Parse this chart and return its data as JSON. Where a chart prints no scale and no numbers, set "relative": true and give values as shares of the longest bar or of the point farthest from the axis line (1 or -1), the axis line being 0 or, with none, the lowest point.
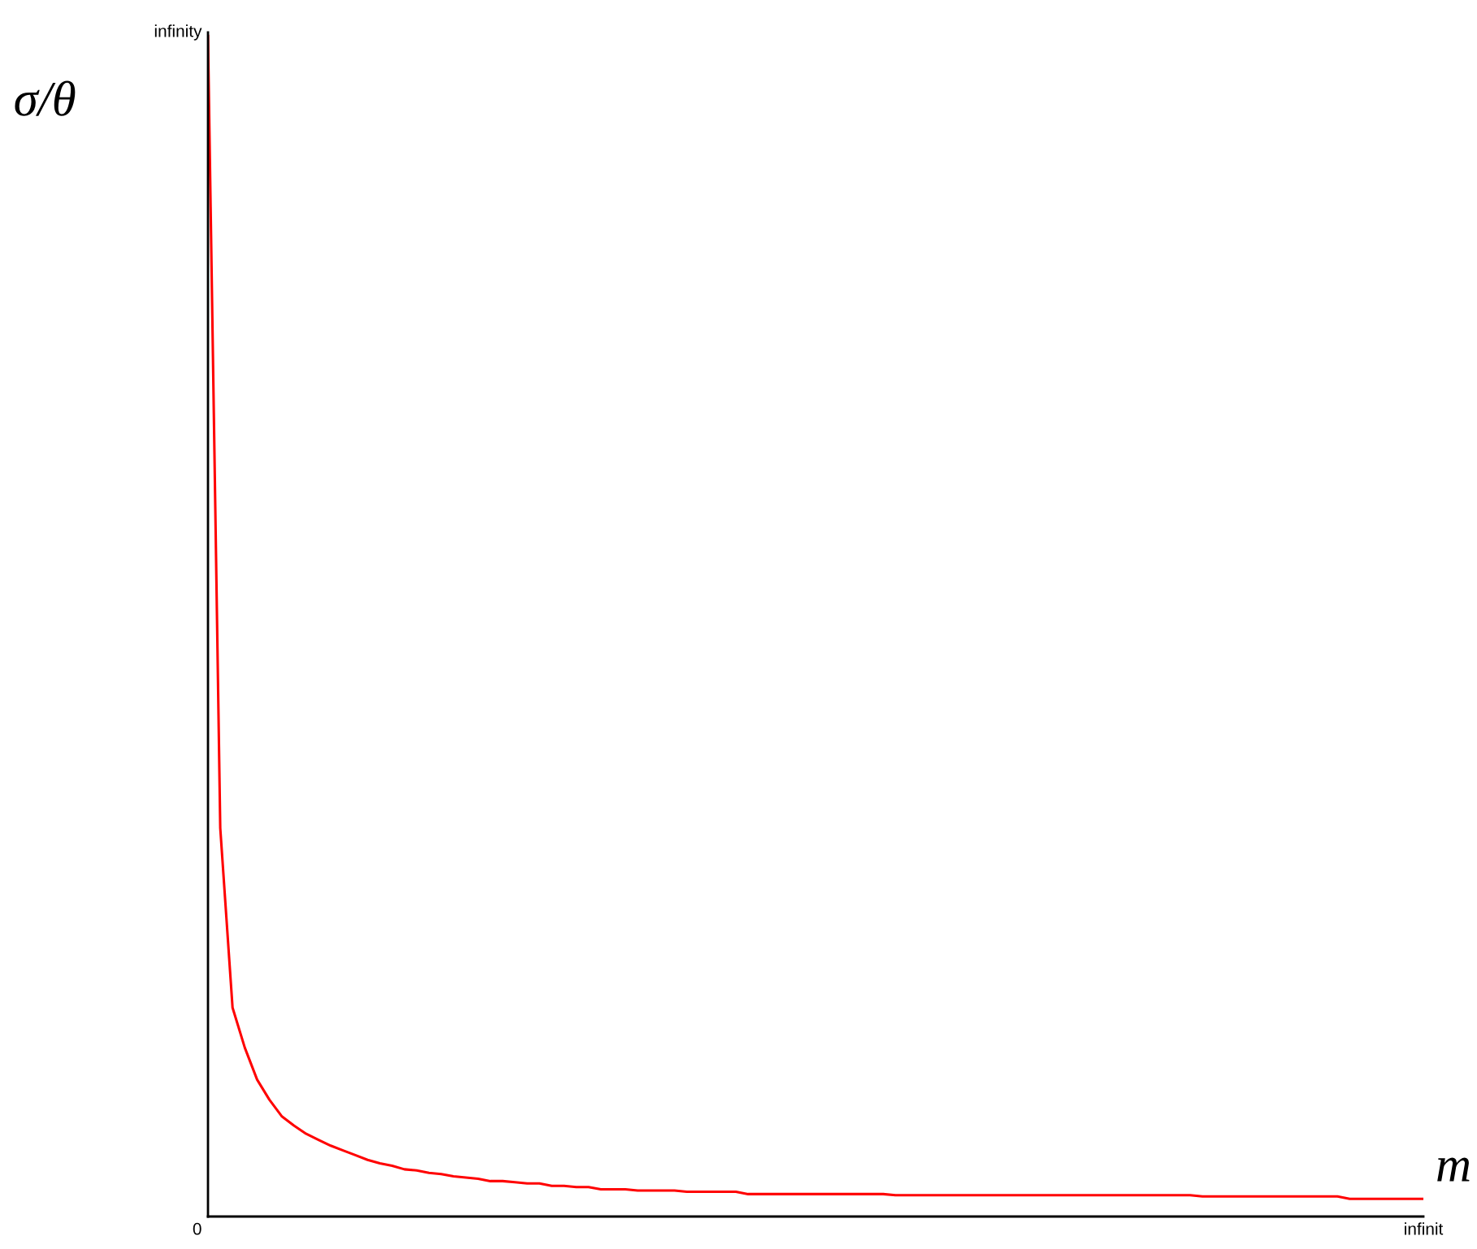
{
  "chart_data": {
    "type": "line",
    "xlabel": "m",
    "ylabel": "σ/θ",
    "relative": true,
    "annotations": [
      "infinity",
      "0",
      "infinit"
    ],
    "categories": [
      null,
      null,
      null,
      null,
      null,
      null,
      null,
      null,
      null,
      null,
      null,
      null,
      null,
      null,
      null,
      null,
      null,
      null,
      null,
      null,
      null,
      null,
      null,
      null,
      null,
      null,
      null,
      null,
      null,
      null,
      null,
      null,
      null,
      null,
      null,
      null,
      null,
      null,
      null,
      null,
      null,
      null,
      null,
      null,
      null,
      null,
      null,
      null,
      null,
      null,
      null,
      null,
      null,
      null,
      null,
      null,
      null,
      null,
      null,
      null,
      null,
      null,
      null,
      null,
      null,
      null,
      null,
      null,
      null,
      null,
      null,
      null,
      null,
      null,
      null,
      null,
      null,
      null,
      null,
      null,
      null,
      null,
      null,
      null,
      null,
      null,
      null,
      null,
      null,
      null,
      null,
      null,
      null,
      null,
      null,
      null,
      null,
      null,
      null,
      null
    ],
    "series": [
      {
        "color": "#ff0000",
        "values": [
          1,
          0.329,
          0.177,
          0.143,
          0.116,
          0.099,
          0.085,
          0.077,
          0.07,
          0.065,
          0.06,
          0.056,
          0.052,
          0.048,
          0.045,
          0.043,
          0.04,
          0.039,
          0.037,
          0.036,
          0.034,
          0.033,
          0.032,
          0.03,
          0.03,
          0.029,
          0.028,
          0.028,
          0.026,
          0.026,
          0.025,
          0.025,
          0.023,
          0.023,
          0.023,
          0.022,
          0.022,
          0.022,
          0.022,
          0.021,
          0.021,
          0.021,
          0.021,
          0.021,
          0.019,
          0.019,
          0.019,
          0.019,
          0.019,
          0.019,
          0.019,
          0.019,
          0.019,
          0.019,
          0.019,
          0.019,
          0.018,
          0.018,
          0.018,
          0.018,
          0.018,
          0.018,
          0.018,
          0.018,
          0.018,
          0.018,
          0.018,
          0.018,
          0.018,
          0.018,
          0.018,
          0.018,
          0.018,
          0.018,
          0.018,
          0.018,
          0.018,
          0.018,
          0.018,
          0.018,
          0.018,
          0.017,
          0.017,
          0.017,
          0.017,
          0.017,
          0.017,
          0.017,
          0.017,
          0.017,
          0.017,
          0.017,
          0.017,
          0.015,
          0.015,
          0.015,
          0.015,
          0.015,
          0.015,
          0.015
        ]
      }
    ]
  }
}
